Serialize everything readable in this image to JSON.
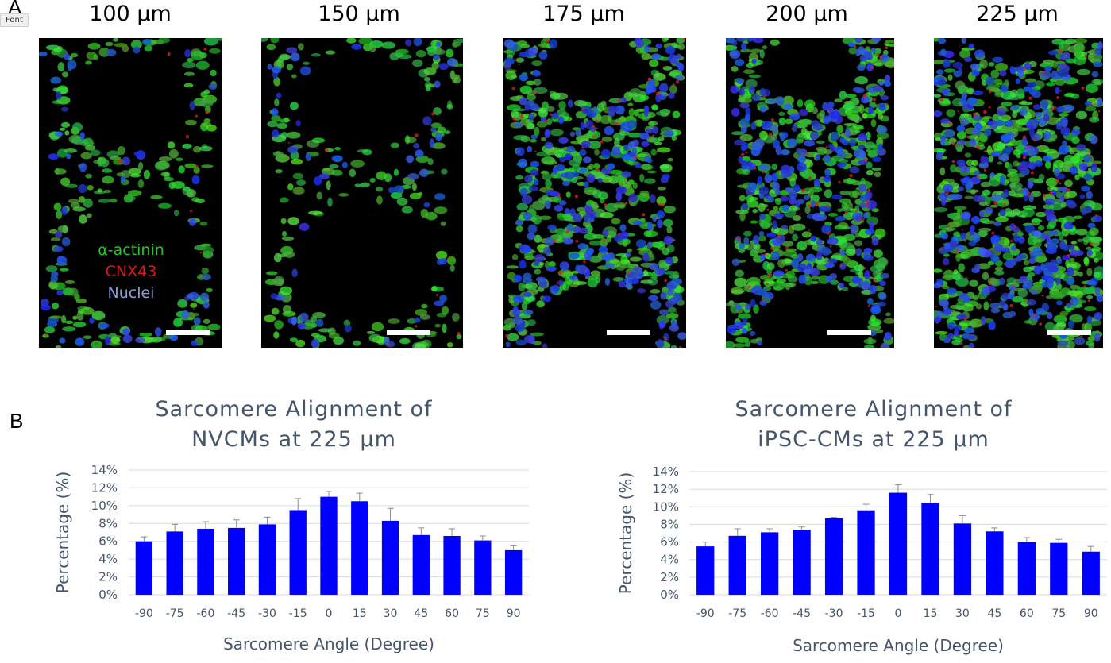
{
  "panel_a_label": "A",
  "panel_b_label": "B",
  "font_tag": "Font",
  "images": [
    {
      "label": "100 μm",
      "variant": "sparse"
    },
    {
      "label": "150 μm",
      "variant": "sparse"
    },
    {
      "label": "175 μm",
      "variant": "dense"
    },
    {
      "label": "200 μm",
      "variant": "dense"
    },
    {
      "label": "225 μm",
      "variant": "full"
    }
  ],
  "legend": {
    "alpha_actinin": "α-actinin",
    "cnx43": "CNX43",
    "nuclei": "Nuclei",
    "colors": {
      "alpha_actinin": "#22c928",
      "cnx43": "#e01818",
      "nuclei": "#8fa0d8"
    }
  },
  "colors": {
    "bar": "#0000ff",
    "axis_text": "#44546A",
    "grid": "#d9d9d9"
  },
  "chart_data": [
    {
      "type": "bar",
      "title_line1": "Sarcomere Alignment of",
      "title_line2": "NVCMs at 225 μm",
      "xlabel": "Sarcomere Angle (Degree)",
      "ylabel": "Percentage (%)",
      "categories": [
        "-90",
        "-75",
        "-60",
        "-45",
        "-30",
        "-15",
        "0",
        "15",
        "30",
        "45",
        "60",
        "75",
        "90"
      ],
      "values": [
        6.0,
        7.1,
        7.4,
        7.5,
        7.9,
        9.5,
        11.0,
        10.5,
        8.3,
        6.7,
        6.6,
        6.1,
        5.0
      ],
      "errors": [
        0.5,
        0.8,
        0.8,
        0.9,
        0.8,
        1.3,
        0.6,
        0.9,
        1.4,
        0.8,
        0.8,
        0.5,
        0.5
      ],
      "ylim": [
        0,
        14
      ],
      "yticks": [
        "0%",
        "2%",
        "4%",
        "6%",
        "8%",
        "10%",
        "12%",
        "14%"
      ],
      "grid": true
    },
    {
      "type": "bar",
      "title_line1": "Sarcomere Alignment of",
      "title_line2": "iPSC-CMs at 225 μm",
      "xlabel": "Sarcomere Angle (Degree)",
      "ylabel": "Percentage (%)",
      "categories": [
        "-90",
        "-75",
        "-60",
        "-45",
        "-30",
        "-15",
        "0",
        "15",
        "30",
        "45",
        "60",
        "75",
        "90"
      ],
      "values": [
        5.5,
        6.7,
        7.1,
        7.4,
        8.7,
        9.6,
        11.6,
        10.4,
        8.1,
        7.2,
        6.0,
        5.9,
        4.9
      ],
      "errors": [
        0.5,
        0.8,
        0.4,
        0.3,
        0.1,
        0.7,
        0.9,
        1.0,
        0.9,
        0.4,
        0.5,
        0.4,
        0.6
      ],
      "ylim": [
        0,
        14
      ],
      "yticks": [
        "0%",
        "2%",
        "4%",
        "6%",
        "8%",
        "10%",
        "12%",
        "14%"
      ],
      "grid": true
    }
  ]
}
